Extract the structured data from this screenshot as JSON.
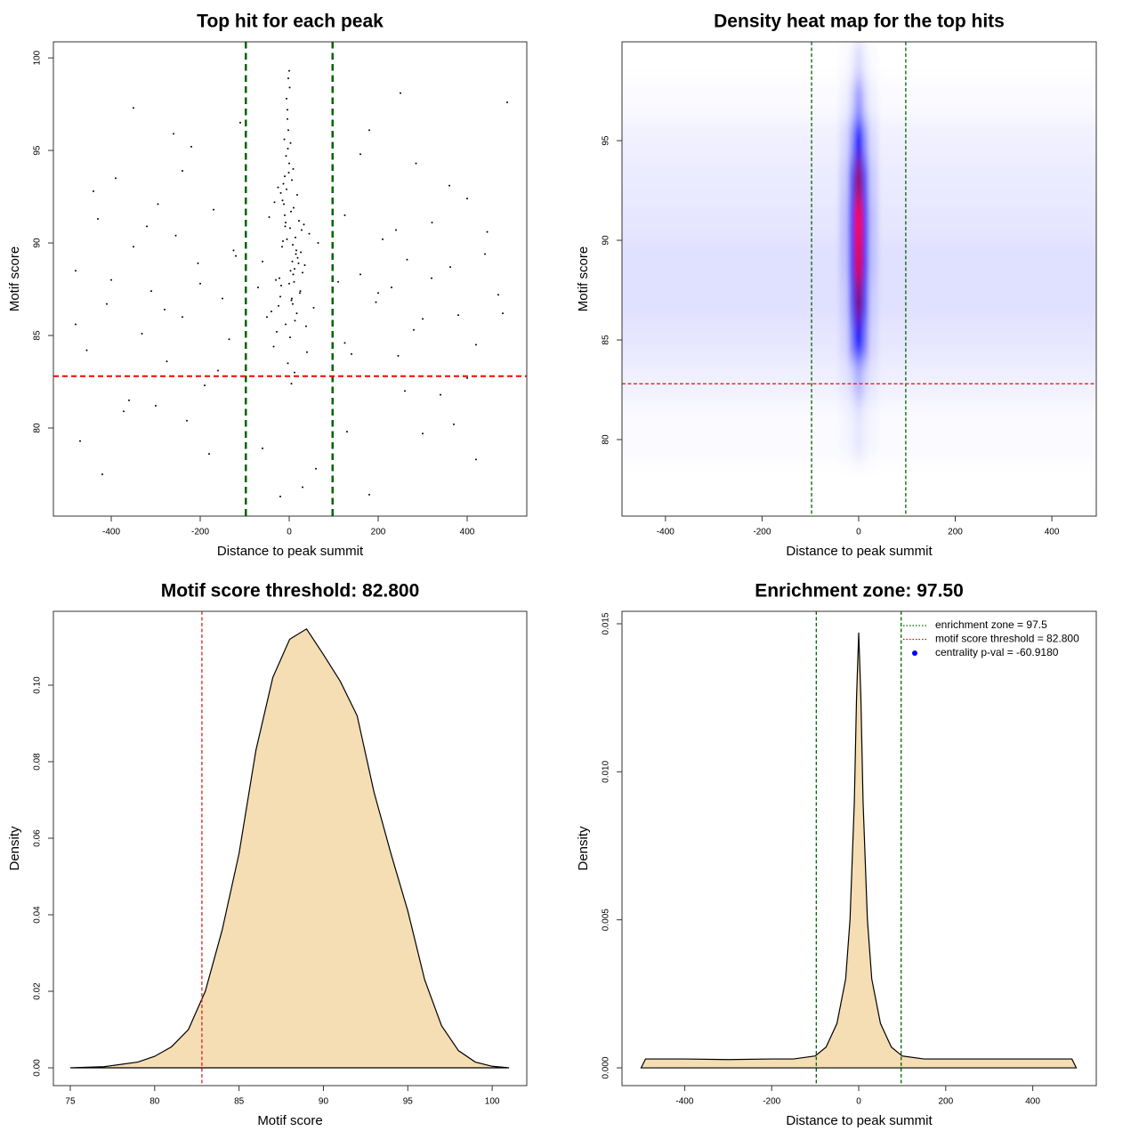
{
  "chart_data": [
    {
      "type": "scatter",
      "title": "Top hit for each peak",
      "x_label": "Distance to peak summit",
      "y_label": "Motif score",
      "xlim": [
        -530,
        534
      ],
      "ylim": [
        75.24,
        100.87
      ],
      "xticks": [
        -400,
        -200,
        0,
        200,
        400
      ],
      "yticks": [
        80,
        85,
        90,
        95,
        100
      ],
      "series": [
        {
          "color": "#000000",
          "x": [
            -480,
            -455,
            -430,
            -410,
            -390,
            -372,
            -350,
            -331,
            -310,
            -295,
            -275,
            -255,
            -240,
            -220,
            -205,
            -190,
            -170,
            -150,
            -135,
            -120,
            -480,
            -440,
            -400,
            -360,
            -320,
            -280,
            -240,
            -200,
            -160,
            -125,
            470,
            445,
            420,
            400,
            380,
            362,
            340,
            321,
            300,
            285,
            265,
            245,
            230,
            210,
            195,
            180,
            160,
            140,
            125,
            110,
            480,
            440,
            400,
            360,
            320,
            280,
            240,
            200,
            160,
            125,
            -470,
            -350,
            -230,
            -110,
            130,
            250,
            370,
            490,
            -420,
            -300,
            -180,
            180,
            300,
            420,
            -260,
            260,
            -60,
            60,
            -20,
            30,
            -5,
            3,
            -12,
            8,
            0,
            15,
            -20,
            22,
            -8,
            6,
            -30,
            28,
            -2,
            11,
            -16,
            18,
            -40,
            35,
            -4,
            2,
            -10,
            7,
            -25,
            25,
            1,
            -14,
            13,
            -6,
            9,
            -50,
            45,
            -3,
            4,
            -18,
            19,
            -35,
            33,
            -1,
            12,
            -9,
            5,
            -7,
            16,
            -22,
            24,
            -11,
            10,
            -60,
            55,
            0,
            -15,
            14,
            -28,
            30,
            -4,
            6,
            -13,
            8,
            -45,
            40,
            2,
            -6,
            17,
            -19,
            21,
            -3,
            9,
            -70,
            65,
            -8,
            3,
            -24,
            26,
            -2,
            12,
            -33,
            38,
            0,
            -10,
            5
          ],
          "values": [
            88.5,
            84.2,
            91.3,
            86.7,
            93.5,
            80.9,
            89.8,
            85.1,
            87.4,
            92.1,
            83.6,
            90.4,
            86.0,
            95.2,
            88.9,
            82.3,
            91.8,
            87.0,
            84.8,
            89.3,
            85.6,
            92.8,
            88.0,
            81.5,
            90.9,
            86.4,
            93.9,
            87.8,
            83.1,
            89.6,
            87.2,
            90.6,
            84.5,
            92.4,
            86.1,
            88.7,
            81.8,
            91.1,
            85.9,
            94.3,
            89.1,
            83.9,
            87.6,
            90.2,
            86.8,
            96.1,
            88.3,
            84.0,
            91.5,
            87.9,
            86.2,
            89.4,
            82.7,
            93.1,
            88.1,
            85.3,
            90.7,
            87.3,
            94.8,
            84.6,
            79.3,
            97.3,
            80.4,
            96.5,
            79.8,
            98.1,
            80.2,
            97.6,
            77.5,
            81.2,
            78.6,
            76.4,
            79.7,
            78.3,
            95.9,
            82.0,
            78.9,
            77.8,
            76.3,
            76.8,
            90.2,
            88.5,
            92.1,
            86.7,
            94.3,
            89.4,
            87.1,
            91.2,
            85.6,
            93.4,
            88.0,
            90.7,
            96.1,
            87.9,
            89.8,
            92.6,
            86.3,
            88.8,
            97.2,
            84.9,
            91.5,
            89.0,
            93.0,
            87.4,
            98.4,
            90.1,
            85.8,
            92.9,
            88.3,
            86.0,
            90.5,
            95.1,
            91.7,
            87.7,
            89.2,
            84.4,
            91.0,
            93.8,
            88.6,
            90.9,
            86.9,
            94.7,
            89.6,
            88.1,
            87.3,
            95.6,
            91.9,
            89.0,
            86.5,
            99.3,
            92.3,
            90.3,
            85.2,
            88.4,
            96.7,
            87.0,
            93.2,
            89.9,
            91.4,
            84.1,
            90.8,
            97.8,
            86.2,
            92.7,
            88.9,
            83.5,
            94.0,
            87.6,
            90.0,
            91.1,
            95.4,
            86.6,
            89.5,
            98.9,
            83.0,
            92.2,
            85.5,
            87.8,
            93.6,
            82.4
          ]
        }
      ],
      "vlines": [
        {
          "value": -97.5,
          "color": "#006400",
          "width": 2.5
        },
        {
          "value": 97.5,
          "color": "#006400",
          "width": 2.5
        }
      ],
      "hlines": [
        {
          "value": 82.8,
          "color": "#ff0000",
          "width": 2
        }
      ]
    },
    {
      "type": "heatmap",
      "title": "Density heat map for the top hits",
      "x_label": "Distance to peak summit",
      "y_label": "Motif score",
      "xlim": [
        -490,
        492
      ],
      "ylim": [
        76.16,
        99.96
      ],
      "xticks": [
        -400,
        -200,
        0,
        200,
        400
      ],
      "yticks": [
        80,
        85,
        90,
        95
      ],
      "colors": [
        "#ffffff",
        "#0000ff",
        "#ff0000"
      ],
      "x_edges": [
        -500,
        -100,
        -40,
        -20,
        -8,
        8,
        20,
        40,
        100,
        500
      ],
      "y_edges": [
        79,
        82,
        84,
        86,
        88,
        90,
        92,
        94,
        96,
        98,
        100
      ],
      "z": [
        [
          0.01,
          0.01,
          0.02,
          0.03,
          0.05,
          0.03,
          0.02,
          0.01,
          0.01
        ],
        [
          0.03,
          0.03,
          0.05,
          0.08,
          0.15,
          0.08,
          0.05,
          0.03,
          0.03
        ],
        [
          0.05,
          0.05,
          0.08,
          0.25,
          0.5,
          0.25,
          0.08,
          0.05,
          0.05
        ],
        [
          0.06,
          0.06,
          0.1,
          0.35,
          0.75,
          0.35,
          0.1,
          0.06,
          0.06
        ],
        [
          0.06,
          0.06,
          0.12,
          0.42,
          0.95,
          0.42,
          0.12,
          0.06,
          0.06
        ],
        [
          0.05,
          0.05,
          0.12,
          0.42,
          1,
          0.42,
          0.12,
          0.05,
          0.05
        ],
        [
          0.04,
          0.04,
          0.1,
          0.35,
          0.8,
          0.35,
          0.1,
          0.04,
          0.04
        ],
        [
          0.03,
          0.03,
          0.07,
          0.2,
          0.5,
          0.2,
          0.07,
          0.03,
          0.03
        ],
        [
          0.01,
          0.01,
          0.03,
          0.08,
          0.2,
          0.08,
          0.03,
          0.01,
          0.01
        ],
        [
          0,
          0,
          0.01,
          0.03,
          0.07,
          0.03,
          0.01,
          0,
          0
        ]
      ],
      "vlines": [
        {
          "value": -97.5,
          "color": "#006400",
          "width": 1.3
        },
        {
          "value": 97.5,
          "color": "#006400",
          "width": 1.3
        }
      ],
      "hlines": [
        {
          "value": 82.8,
          "color": "#dd2222",
          "width": 1.3
        }
      ]
    },
    {
      "type": "area",
      "title": "Motif score threshold: 82.800",
      "x_label": "Motif score",
      "y_label": "Density",
      "xlim": [
        74,
        102.05
      ],
      "ylim": [
        -0.00465,
        0.1193
      ],
      "xticks": [
        75,
        80,
        85,
        90,
        95,
        100
      ],
      "yticks": [
        {
          "value": 0,
          "label": "0.00"
        },
        {
          "value": 0.02,
          "label": "0.02"
        },
        {
          "value": 0.04,
          "label": "0.04"
        },
        {
          "value": 0.06,
          "label": "0.06"
        },
        {
          "value": 0.08,
          "label": "0.08"
        },
        {
          "value": 0.1,
          "label": "0.10"
        }
      ],
      "color": "#f5deb3",
      "x": [
        75,
        77,
        79,
        80,
        81,
        82,
        83,
        84,
        85,
        86,
        87,
        88,
        89,
        90,
        91,
        92,
        93,
        94,
        95,
        96,
        97,
        98,
        99,
        100,
        101
      ],
      "values": [
        0,
        0.0003,
        0.0015,
        0.003,
        0.0055,
        0.01,
        0.02,
        0.036,
        0.056,
        0.083,
        0.102,
        0.112,
        0.1147,
        0.108,
        0.101,
        0.092,
        0.072,
        0.056,
        0.041,
        0.023,
        0.011,
        0.0045,
        0.0015,
        0.0004,
        0
      ],
      "vlines": [
        {
          "value": 82.8,
          "color": "#dd2222",
          "width": 1.3
        }
      ]
    },
    {
      "type": "area",
      "title": "Enrichment zone: 97.50",
      "x_label": "Distance to peak summit",
      "y_label": "Density",
      "xlim": [
        -544,
        546
      ],
      "ylim": [
        -0.0006,
        0.01542
      ],
      "xticks": [
        -400,
        -200,
        0,
        200,
        400
      ],
      "yticks": [
        {
          "value": 0,
          "label": "0.000"
        },
        {
          "value": 0.005,
          "label": "0.005"
        },
        {
          "value": 0.01,
          "label": "0.010"
        },
        {
          "value": 0.015,
          "label": "0.015"
        }
      ],
      "color": "#f5deb3",
      "x": [
        -500,
        -490,
        -400,
        -300,
        -200,
        -150,
        -100,
        -75,
        -50,
        -30,
        -20,
        -10,
        -5,
        0,
        5,
        10,
        20,
        30,
        50,
        75,
        100,
        150,
        200,
        300,
        400,
        490,
        500
      ],
      "values": [
        0,
        0.0003,
        0.0003,
        0.00028,
        0.0003,
        0.0003,
        0.0004,
        0.0007,
        0.0015,
        0.003,
        0.005,
        0.009,
        0.0125,
        0.0147,
        0.0125,
        0.009,
        0.005,
        0.003,
        0.0015,
        0.0007,
        0.0004,
        0.0003,
        0.0003,
        0.0003,
        0.0003,
        0.0003,
        0
      ],
      "vlines": [
        {
          "value": -97.5,
          "color": "#006400",
          "width": 1.3
        },
        {
          "value": 97.5,
          "color": "#006400",
          "width": 1.3
        }
      ],
      "legend_position": "top-right",
      "legend": [
        {
          "label": "enrichment zone = 97.5",
          "color": "#006400",
          "marker": "line"
        },
        {
          "label": "motif score threshold = 82.800",
          "color": "#ff0000",
          "marker": "line"
        },
        {
          "label": "centrality p-val = -60.9180",
          "color": "#0000ff",
          "marker": "point"
        }
      ]
    }
  ]
}
